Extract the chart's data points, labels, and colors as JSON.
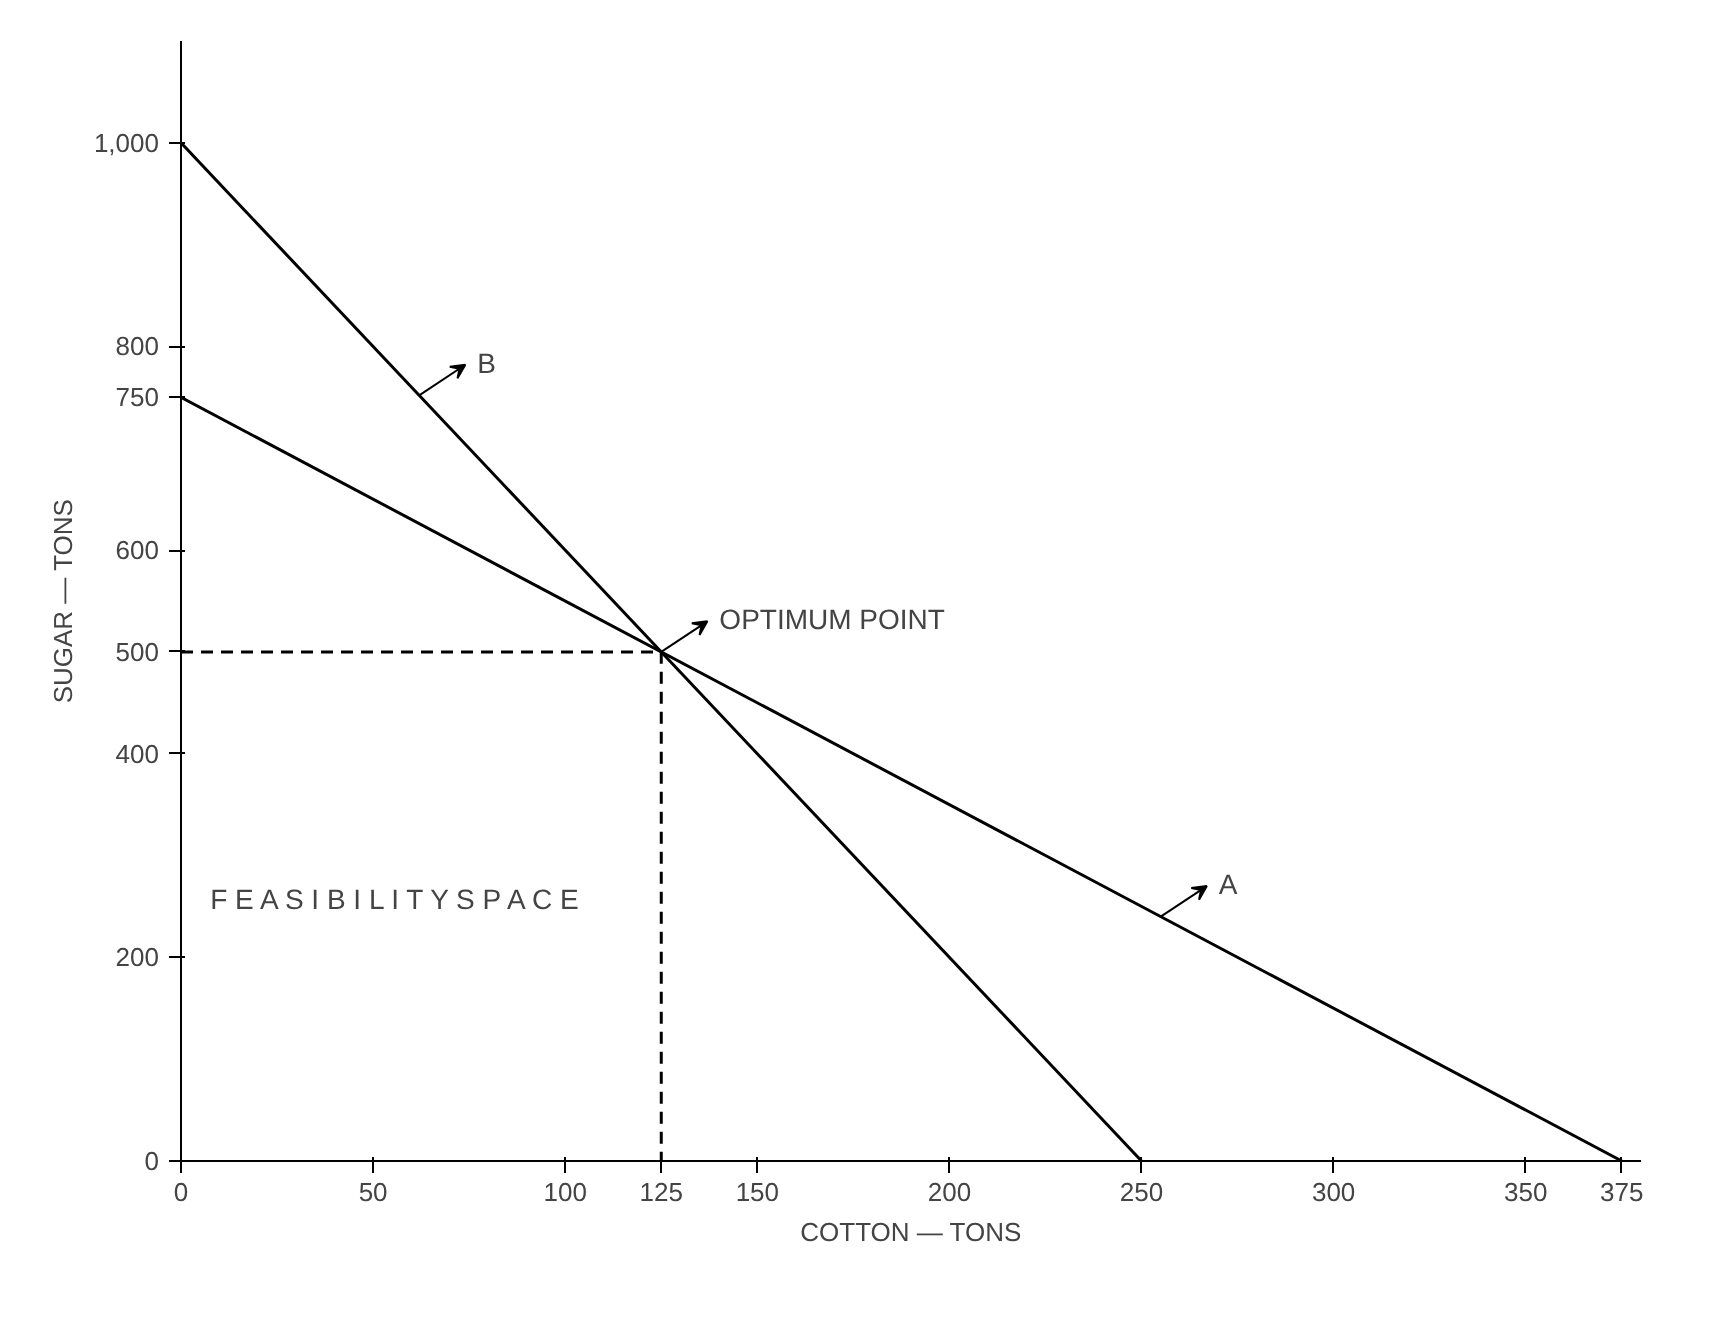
{
  "chart_data": {
    "type": "line",
    "xlabel": "COTTON — TONS",
    "ylabel": "SUGAR — TONS",
    "xlim": [
      0,
      380
    ],
    "ylim": [
      0,
      1100
    ],
    "xticks": [
      0,
      50,
      100,
      125,
      150,
      200,
      250,
      300,
      350,
      375
    ],
    "yticks": [
      0,
      200,
      400,
      500,
      600,
      750,
      800,
      {
        "value": 1000,
        "label": "1,000"
      }
    ],
    "grid": false,
    "marker": "none",
    "series": [
      {
        "color": "#000000",
        "x": [
          0,
          375
        ],
        "values": [
          750,
          0
        ]
      },
      {
        "color": "#000000",
        "x": [
          0,
          250
        ],
        "values": [
          1000,
          0
        ]
      },
      {
        "color": "#000000",
        "x": [
          0,
          125,
          125
        ],
        "values": [
          500,
          500,
          0
        ],
        "line_style": "dashed"
      }
    ],
    "annotations": [
      {
        "text": "B",
        "x": 62,
        "y": 752
      },
      {
        "text": "OPTIMUM POINT",
        "x": 125,
        "y": 500
      },
      {
        "text": "A",
        "x": 255,
        "y": 240
      },
      "F E A S I B I L I T Y   S P A C E"
    ]
  }
}
